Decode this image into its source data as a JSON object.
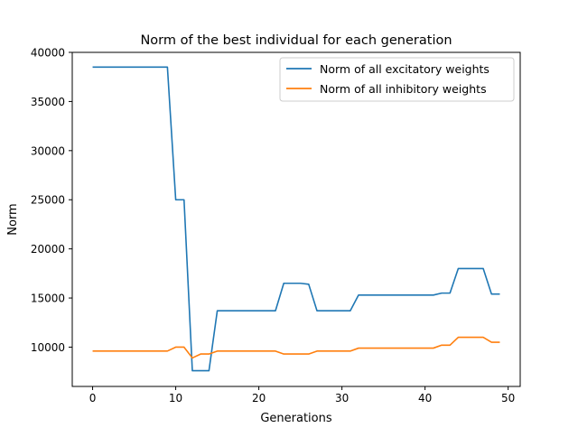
{
  "chart_data": {
    "type": "line",
    "title": "Norm of the best individual for each generation",
    "xlabel": "Generations",
    "ylabel": "Norm",
    "xlim": [
      -2.45,
      51.45
    ],
    "ylim": [
      6000,
      40000
    ],
    "xticks": [
      0,
      10,
      20,
      30,
      40,
      50
    ],
    "yticks": [
      10000,
      15000,
      20000,
      25000,
      30000,
      35000,
      40000
    ],
    "legend_position": "top-right",
    "grid": false,
    "x": [
      0,
      1,
      2,
      3,
      4,
      5,
      6,
      7,
      8,
      9,
      10,
      11,
      12,
      13,
      14,
      15,
      16,
      17,
      18,
      19,
      20,
      21,
      22,
      23,
      24,
      25,
      26,
      27,
      28,
      29,
      30,
      31,
      32,
      33,
      34,
      35,
      36,
      37,
      38,
      39,
      40,
      41,
      42,
      43,
      44,
      45,
      46,
      47,
      48,
      49
    ],
    "series": [
      {
        "name": "Norm of all excitatory weights",
        "color": "#1f77b4",
        "values": [
          38500,
          38500,
          38500,
          38500,
          38500,
          38500,
          38500,
          38500,
          38500,
          38500,
          25000,
          25000,
          7600,
          7600,
          7600,
          13700,
          13700,
          13700,
          13700,
          13700,
          13700,
          13700,
          13700,
          16500,
          16500,
          16500,
          16400,
          13700,
          13700,
          13700,
          13700,
          13700,
          15300,
          15300,
          15300,
          15300,
          15300,
          15300,
          15300,
          15300,
          15300,
          15300,
          15500,
          15500,
          18000,
          18000,
          18000,
          18000,
          15400,
          15400
        ]
      },
      {
        "name": "Norm of all inhibitory weights",
        "color": "#ff7f0e",
        "values": [
          9600,
          9600,
          9600,
          9600,
          9600,
          9600,
          9600,
          9600,
          9600,
          9600,
          10000,
          10000,
          8900,
          9300,
          9300,
          9600,
          9600,
          9600,
          9600,
          9600,
          9600,
          9600,
          9600,
          9300,
          9300,
          9300,
          9300,
          9600,
          9600,
          9600,
          9600,
          9600,
          9900,
          9900,
          9900,
          9900,
          9900,
          9900,
          9900,
          9900,
          9900,
          9900,
          10200,
          10200,
          11000,
          11000,
          11000,
          11000,
          10500,
          10500
        ]
      }
    ]
  }
}
